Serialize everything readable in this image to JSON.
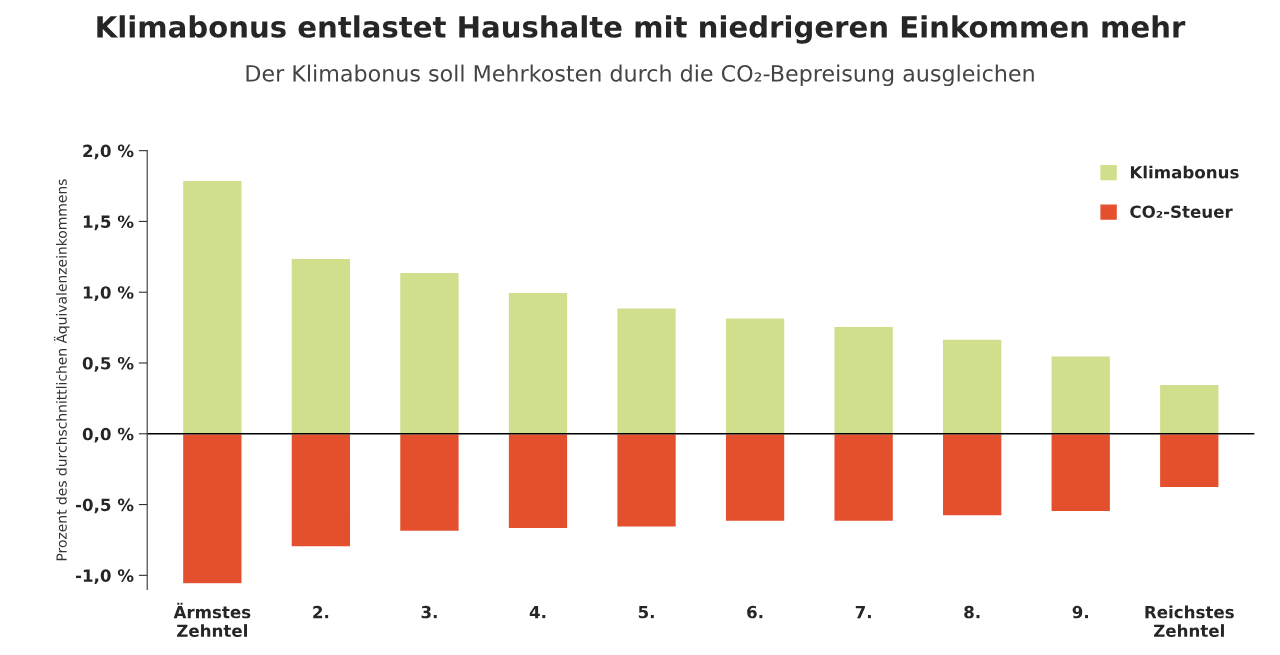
{
  "chart_data": {
    "type": "bar",
    "title": "Klimabonus entlastet Haushalte mit niedrigeren Einkommen mehr",
    "subtitle": "Der Klimabonus soll Mehrkosten durch die CO₂-Bepreisung ausgleichen",
    "ylabel": "Prozent des durchschnittlichen Äquivalenzeinkommens",
    "categories": [
      "Ärmstes\nZehntel",
      "2.",
      "3.",
      "4.",
      "5.",
      "6.",
      "7.",
      "8.",
      "9.",
      "Reichstes\nZehntel"
    ],
    "stacked": true,
    "series": [
      {
        "name": "Klimabonus",
        "color": "#d0df8c",
        "values": [
          1.79,
          1.24,
          1.14,
          1.0,
          0.89,
          0.82,
          0.76,
          0.67,
          0.55,
          0.35
        ]
      },
      {
        "name": "CO₂-Steuer",
        "color": "#e4502e",
        "values": [
          -1.06,
          -0.8,
          -0.69,
          -0.67,
          -0.66,
          -0.62,
          -0.62,
          -0.58,
          -0.55,
          -0.38
        ]
      }
    ],
    "ylim": [
      -1.1,
      2.0
    ],
    "yticks": [
      {
        "value": -1.0,
        "label": "-1,0 %"
      },
      {
        "value": -0.5,
        "label": "-0,5 %"
      },
      {
        "value": 0.0,
        "label": "0,0 %"
      },
      {
        "value": 0.5,
        "label": "0,5 %"
      },
      {
        "value": 1.0,
        "label": "1,0 %"
      },
      {
        "value": 1.5,
        "label": "1,5 %"
      },
      {
        "value": 2.0,
        "label": "2,0 %"
      }
    ],
    "ref_lines": [
      {
        "axis": "y",
        "value": 0,
        "color": "#000000"
      }
    ],
    "grid": false,
    "legend": "top right"
  }
}
